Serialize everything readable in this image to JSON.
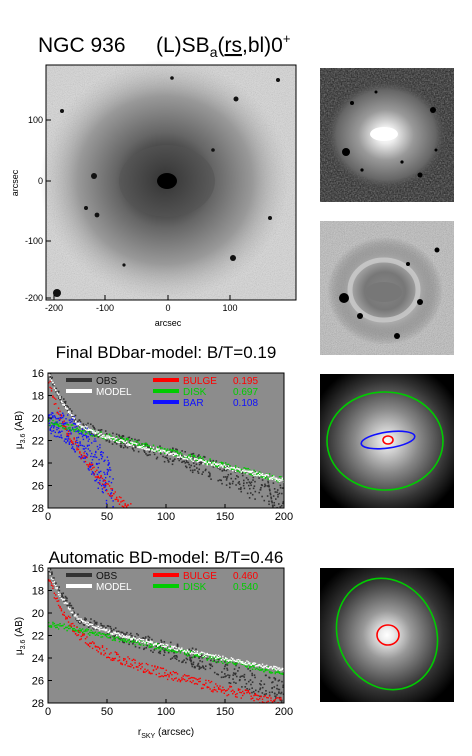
{
  "galaxy": {
    "name": "NGC 936",
    "class_main": "(L)SB",
    "class_sub": "a",
    "class_paren_open": "(",
    "class_rs": "rs",
    "class_rest": ",bl)0",
    "class_sup": "+"
  },
  "image_panel": {
    "xlabel": "arcsec",
    "ylabel": "arcsec",
    "xticks": [
      "-200",
      "-100",
      "0",
      "100"
    ],
    "yticks": [
      "100",
      "0",
      "-100",
      "-200"
    ]
  },
  "profile_ylabel_main": "μ",
  "profile_ylabel_sub": "3.6",
  "profile_ylabel_unit": " (AB)",
  "profile_xlabel_main": "r",
  "profile_xlabel_sub": "SKY",
  "profile_xlabel_unit": " (arcsec)",
  "colors": {
    "bulge": "#ff0000",
    "disk": "#00cc00",
    "bar": "#1010ff",
    "obs": "#333333",
    "model": "#ffffff",
    "panel_bg": "#8c8c8c"
  },
  "chart_data": [
    {
      "type": "scatter",
      "title": "Final BDbar-model: B/T=0.19",
      "xlim": [
        0,
        200
      ],
      "ylim": [
        28,
        16
      ],
      "xticks": [
        "0",
        "50",
        "100",
        "150",
        "200"
      ],
      "yticks": [
        "16",
        "18",
        "20",
        "22",
        "24",
        "26",
        "28"
      ],
      "legend": [
        {
          "name": "OBS",
          "value": ""
        },
        {
          "name": "MODEL",
          "value": ""
        },
        {
          "name": "BULGE",
          "value": "0.195"
        },
        {
          "name": "DISK",
          "value": "0.697"
        },
        {
          "name": "BAR",
          "value": "0.108"
        }
      ],
      "series": [
        {
          "name": "OBS",
          "x": [
            0,
            10,
            25,
            50,
            75,
            100,
            125,
            150,
            175,
            200
          ],
          "y": [
            16.0,
            18.2,
            20.4,
            21.6,
            22.4,
            23.2,
            24.0,
            25.0,
            26.2,
            27.2
          ]
        },
        {
          "name": "MODEL",
          "x": [
            0,
            10,
            25,
            50,
            75,
            100,
            125,
            150,
            175,
            200
          ],
          "y": [
            16.0,
            18.3,
            20.5,
            21.7,
            22.4,
            23.0,
            23.7,
            24.3,
            24.9,
            25.5
          ]
        },
        {
          "name": "BULGE",
          "x": [
            0,
            5,
            10,
            20,
            30,
            40,
            50,
            60,
            70
          ],
          "y": [
            16.4,
            18.4,
            19.9,
            21.9,
            23.5,
            24.9,
            26.2,
            27.3,
            28.0
          ]
        },
        {
          "name": "DISK",
          "x": [
            0,
            50,
            100,
            150,
            200
          ],
          "y": [
            20.3,
            21.6,
            22.9,
            24.2,
            25.5
          ]
        },
        {
          "name": "BAR",
          "x": [
            0,
            10,
            20,
            30,
            40,
            50,
            55
          ],
          "y": [
            20.4,
            20.6,
            21.2,
            22.2,
            23.6,
            25.8,
            28.0
          ]
        }
      ]
    },
    {
      "type": "scatter",
      "title": "Automatic BD-model: B/T=0.46",
      "xlim": [
        0,
        200
      ],
      "ylim": [
        28,
        16
      ],
      "xticks": [
        "0",
        "50",
        "100",
        "150",
        "200"
      ],
      "yticks": [
        "16",
        "18",
        "20",
        "22",
        "24",
        "26",
        "28"
      ],
      "legend": [
        {
          "name": "OBS",
          "value": ""
        },
        {
          "name": "MODEL",
          "value": ""
        },
        {
          "name": "BULGE",
          "value": "0.460"
        },
        {
          "name": "DISK",
          "value": "0.540"
        }
      ],
      "series": [
        {
          "name": "OBS",
          "x": [
            0,
            10,
            25,
            50,
            75,
            100,
            125,
            150,
            175,
            200
          ],
          "y": [
            16.0,
            18.2,
            20.4,
            21.6,
            22.4,
            23.2,
            24.0,
            25.0,
            26.2,
            27.2
          ]
        },
        {
          "name": "MODEL",
          "x": [
            0,
            10,
            25,
            50,
            75,
            100,
            125,
            150,
            175,
            200
          ],
          "y": [
            16.2,
            18.5,
            20.5,
            21.6,
            22.3,
            22.9,
            23.5,
            24.0,
            24.5,
            25.0
          ]
        },
        {
          "name": "BULGE",
          "x": [
            0,
            10,
            25,
            50,
            75,
            100,
            125,
            150,
            175,
            200
          ],
          "y": [
            16.8,
            19.6,
            21.8,
            23.6,
            24.6,
            25.4,
            26.1,
            26.8,
            27.4,
            28.0
          ]
        },
        {
          "name": "DISK",
          "x": [
            0,
            50,
            100,
            150,
            200
          ],
          "y": [
            20.9,
            22.0,
            23.1,
            24.2,
            25.3
          ]
        }
      ]
    }
  ]
}
